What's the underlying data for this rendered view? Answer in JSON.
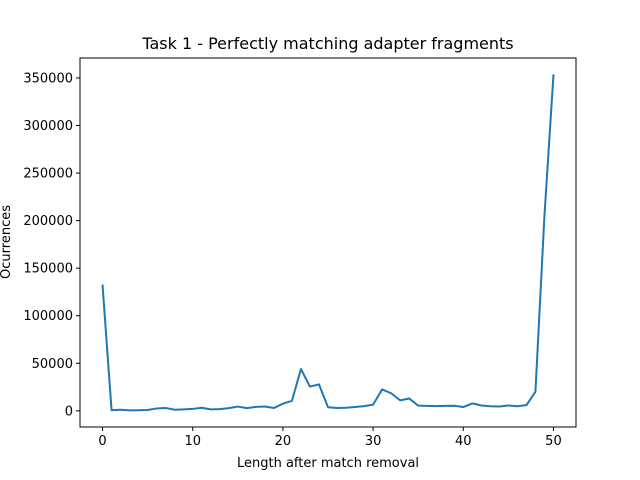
{
  "chart_data": {
    "type": "line",
    "title": "Task 1 - Perfectly matching adapter fragments",
    "xlabel": "Length after match removal",
    "ylabel": "Ocurrences",
    "xlim": [
      -2.5,
      52.5
    ],
    "ylim": [
      -17000,
      371000
    ],
    "xticks": [
      0,
      10,
      20,
      30,
      40,
      50
    ],
    "yticks": [
      0,
      50000,
      100000,
      150000,
      200000,
      250000,
      300000,
      350000
    ],
    "grid": false,
    "legend": "none",
    "series": [
      {
        "color": "#1f77b4",
        "x": [
          0,
          1,
          2,
          3,
          4,
          5,
          6,
          7,
          8,
          9,
          10,
          11,
          12,
          13,
          14,
          15,
          16,
          17,
          18,
          19,
          20,
          21,
          22,
          23,
          24,
          25,
          26,
          27,
          28,
          29,
          30,
          31,
          32,
          33,
          34,
          35,
          36,
          37,
          38,
          39,
          40,
          41,
          42,
          43,
          44,
          45,
          46,
          47,
          48,
          49,
          50
        ],
        "y": [
          132000,
          800,
          1200,
          500,
          600,
          900,
          2500,
          3000,
          1200,
          1500,
          2000,
          3200,
          1500,
          1800,
          2800,
          4500,
          2800,
          4200,
          4500,
          3000,
          7500,
          10500,
          44000,
          25500,
          27800,
          3800,
          3000,
          3200,
          4000,
          5000,
          6500,
          22500,
          18500,
          11000,
          13000,
          5500,
          5200,
          5000,
          5200,
          5400,
          4000,
          7800,
          5600,
          4800,
          4500,
          5600,
          4800,
          6000,
          20000,
          205000,
          353000
        ]
      }
    ]
  }
}
